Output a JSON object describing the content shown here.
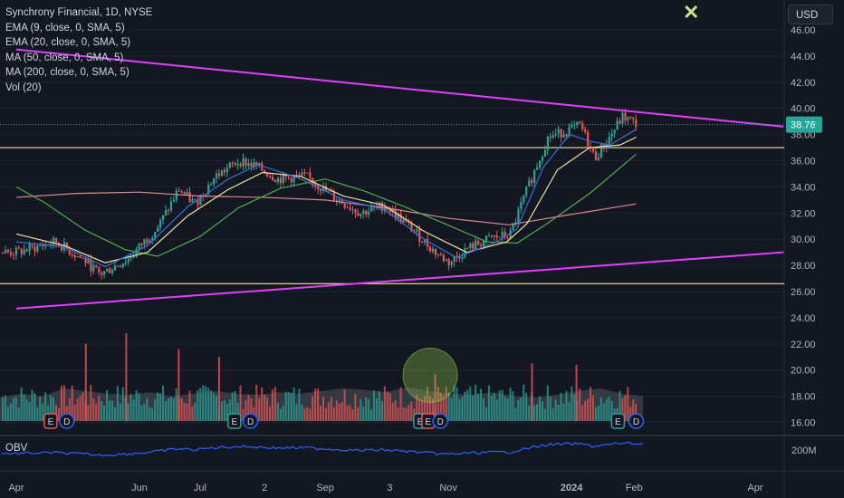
{
  "legend": {
    "symbol": "Synchrony Financial, 1D, NYSE",
    "ema9": "EMA (9, close, 0, SMA, 5)",
    "ema20": "EMA (20, close, 0, SMA, 5)",
    "ma50": "MA (50, close, 0, SMA, 5)",
    "ma200": "MA (200, close, 0, SMA, 5)",
    "vol": "Vol (20)"
  },
  "currency": "USD",
  "obv_label": "OBV",
  "obv_scale_label": "200M",
  "price_tag": "38.76",
  "colors": {
    "up": "#26a69a",
    "down": "#ef5350",
    "trendline": "#e040fb",
    "level": "#f5e6a1",
    "ema9": "#3d6fd8",
    "ema20": "#f0e0a0",
    "ma50": "#4caf50",
    "ma200": "#d98a8a",
    "obv": "#2962ff",
    "close_icon": "#c9e08a"
  },
  "chart_data": {
    "type": "candlestick",
    "y_ticks": [
      "46.00",
      "44.00",
      "42.00",
      "40.00",
      "38.00",
      "36.00",
      "34.00",
      "32.00",
      "30.00",
      "28.00",
      "26.00",
      "24.00",
      "22.00",
      "20.00",
      "18.00",
      "16.00"
    ],
    "ylim": [
      15,
      48
    ],
    "x_ticks": [
      "Apr",
      "Jun",
      "Jul",
      "2",
      "Sep",
      "3",
      "Nov",
      "2024",
      "Feb",
      "Apr"
    ],
    "price_path": [
      {
        "date": "2023-04-01",
        "close": 29.0
      },
      {
        "date": "2023-04-20",
        "close": 29.8
      },
      {
        "date": "2023-05-05",
        "close": 28.3
      },
      {
        "date": "2023-05-12",
        "close": 27.3
      },
      {
        "date": "2023-05-26",
        "close": 28.5
      },
      {
        "date": "2023-06-10",
        "close": 31.0
      },
      {
        "date": "2023-06-20",
        "close": 33.8
      },
      {
        "date": "2023-06-28",
        "close": 32.7
      },
      {
        "date": "2023-07-08",
        "close": 34.8
      },
      {
        "date": "2023-07-20",
        "close": 36.0
      },
      {
        "date": "2023-07-28",
        "close": 35.6
      },
      {
        "date": "2023-08-08",
        "close": 34.6
      },
      {
        "date": "2023-08-22",
        "close": 34.8
      },
      {
        "date": "2023-09-05",
        "close": 33.2
      },
      {
        "date": "2023-09-18",
        "close": 32.0
      },
      {
        "date": "2023-09-30",
        "close": 32.6
      },
      {
        "date": "2023-10-12",
        "close": 31.0
      },
      {
        "date": "2023-10-25",
        "close": 29.0
      },
      {
        "date": "2023-11-01",
        "close": 28.2
      },
      {
        "date": "2023-11-10",
        "close": 29.3
      },
      {
        "date": "2023-11-22",
        "close": 30.1
      },
      {
        "date": "2023-12-01",
        "close": 30.3
      },
      {
        "date": "2023-12-10",
        "close": 34.0
      },
      {
        "date": "2023-12-20",
        "close": 37.8
      },
      {
        "date": "2023-12-31",
        "close": 38.4
      },
      {
        "date": "2024-01-05",
        "close": 38.7
      },
      {
        "date": "2024-01-12",
        "close": 36.2
      },
      {
        "date": "2024-01-18",
        "close": 37.5
      },
      {
        "date": "2024-01-26",
        "close": 39.4
      },
      {
        "date": "2024-02-02",
        "close": 38.76
      }
    ],
    "ema9_path": [
      [
        "2023-04-01",
        29.8
      ],
      [
        "2023-04-25",
        29.4
      ],
      [
        "2023-05-15",
        27.9
      ],
      [
        "2023-06-05",
        29.5
      ],
      [
        "2023-06-25",
        32.5
      ],
      [
        "2023-07-15",
        34.6
      ],
      [
        "2023-07-30",
        35.7
      ],
      [
        "2023-08-20",
        34.6
      ],
      [
        "2023-09-10",
        33.0
      ],
      [
        "2023-09-30",
        32.3
      ],
      [
        "2023-10-20",
        30.0
      ],
      [
        "2023-11-05",
        28.6
      ],
      [
        "2023-11-25",
        29.8
      ],
      [
        "2023-12-05",
        30.8
      ],
      [
        "2023-12-18",
        35.5
      ],
      [
        "2023-12-31",
        38.0
      ],
      [
        "2024-01-10",
        37.5
      ],
      [
        "2024-01-20",
        37.2
      ],
      [
        "2024-02-02",
        38.4
      ]
    ],
    "ema20_path": [
      [
        "2023-04-01",
        30.4
      ],
      [
        "2023-04-25",
        29.5
      ],
      [
        "2023-05-15",
        28.2
      ],
      [
        "2023-06-05",
        29.0
      ],
      [
        "2023-06-25",
        31.8
      ],
      [
        "2023-07-15",
        33.8
      ],
      [
        "2023-08-01",
        35.1
      ],
      [
        "2023-08-20",
        34.8
      ],
      [
        "2023-09-10",
        33.3
      ],
      [
        "2023-09-30",
        32.6
      ],
      [
        "2023-10-20",
        30.6
      ],
      [
        "2023-11-10",
        29.0
      ],
      [
        "2023-11-30",
        29.8
      ],
      [
        "2023-12-10",
        31.2
      ],
      [
        "2023-12-25",
        35.3
      ],
      [
        "2024-01-10",
        37.0
      ],
      [
        "2024-01-25",
        37.2
      ],
      [
        "2024-02-02",
        37.8
      ]
    ],
    "ma50_path": [
      [
        "2023-04-01",
        34.0
      ],
      [
        "2023-04-15",
        32.8
      ],
      [
        "2023-05-05",
        30.7
      ],
      [
        "2023-05-25",
        29.2
      ],
      [
        "2023-06-10",
        28.7
      ],
      [
        "2023-07-01",
        30.2
      ],
      [
        "2023-07-20",
        32.4
      ],
      [
        "2023-08-10",
        33.9
      ],
      [
        "2023-09-01",
        34.6
      ],
      [
        "2023-09-20",
        33.7
      ],
      [
        "2023-10-10",
        32.5
      ],
      [
        "2023-10-30",
        31.2
      ],
      [
        "2023-11-20",
        29.8
      ],
      [
        "2023-12-05",
        29.7
      ],
      [
        "2023-12-20",
        31.2
      ],
      [
        "2024-01-10",
        33.5
      ],
      [
        "2024-02-02",
        36.5
      ]
    ],
    "ma200_path": [
      [
        "2023-04-01",
        33.2
      ],
      [
        "2023-05-01",
        33.5
      ],
      [
        "2023-06-01",
        33.6
      ],
      [
        "2023-07-01",
        33.3
      ],
      [
        "2023-08-01",
        33.2
      ],
      [
        "2023-09-01",
        33.0
      ],
      [
        "2023-10-01",
        32.4
      ],
      [
        "2023-11-01",
        31.6
      ],
      [
        "2023-12-01",
        31.1
      ],
      [
        "2024-01-01",
        31.9
      ],
      [
        "2024-02-02",
        32.7
      ]
    ],
    "horizontal_levels": [
      37.0,
      26.6
    ],
    "trendlines": [
      {
        "from": [
          "2023-04-01",
          44.5
        ],
        "to": [
          "2024-04-15",
          38.6
        ]
      },
      {
        "from": [
          "2023-04-01",
          24.7
        ],
        "to": [
          "2024-04-15",
          29.0
        ]
      }
    ],
    "volume_area_values": [
      17.9,
      18.2,
      18.0,
      18.6,
      18.4,
      18.2,
      18.1,
      18.3,
      18.0,
      18.2,
      18.4,
      18.2,
      18.1,
      18.3,
      18.2,
      18.4,
      18.6,
      18.5,
      18.3,
      18.7,
      18.4,
      18.2,
      18.1,
      18.3,
      18.0,
      17.9,
      18.1,
      18.4,
      18.6,
      18.2,
      18.0
    ],
    "volume_spikes": [
      {
        "date": "2023-05-05",
        "value": 22.0
      },
      {
        "date": "2023-05-25",
        "value": 22.8
      },
      {
        "date": "2023-06-20",
        "value": 21.6
      },
      {
        "date": "2023-07-10",
        "value": 21.0
      },
      {
        "date": "2023-10-25",
        "value": 19.7
      },
      {
        "date": "2023-12-12",
        "value": 20.5
      },
      {
        "date": "2024-01-03",
        "value": 20.4
      }
    ],
    "event_markers": [
      {
        "date": "2023-04-18",
        "letter": "E",
        "color": "#ef5350"
      },
      {
        "date": "2023-04-26",
        "letter": "D",
        "color": "#2962ff"
      },
      {
        "date": "2023-07-18",
        "letter": "E",
        "color": "#26a69a"
      },
      {
        "date": "2023-07-26",
        "letter": "D",
        "color": "#2962ff"
      },
      {
        "date": "2023-10-18",
        "letter": "E",
        "color": "#26a69a"
      },
      {
        "date": "2023-10-22",
        "letter": "E",
        "color": "#ef5350"
      },
      {
        "date": "2023-10-28",
        "letter": "D",
        "color": "#2962ff"
      },
      {
        "date": "2024-01-24",
        "letter": "E",
        "color": "#26a69a"
      },
      {
        "date": "2024-02-02",
        "letter": "D",
        "color": "#2962ff"
      }
    ],
    "highlight_circle": {
      "date": "2023-10-23",
      "value": 19.6
    }
  }
}
